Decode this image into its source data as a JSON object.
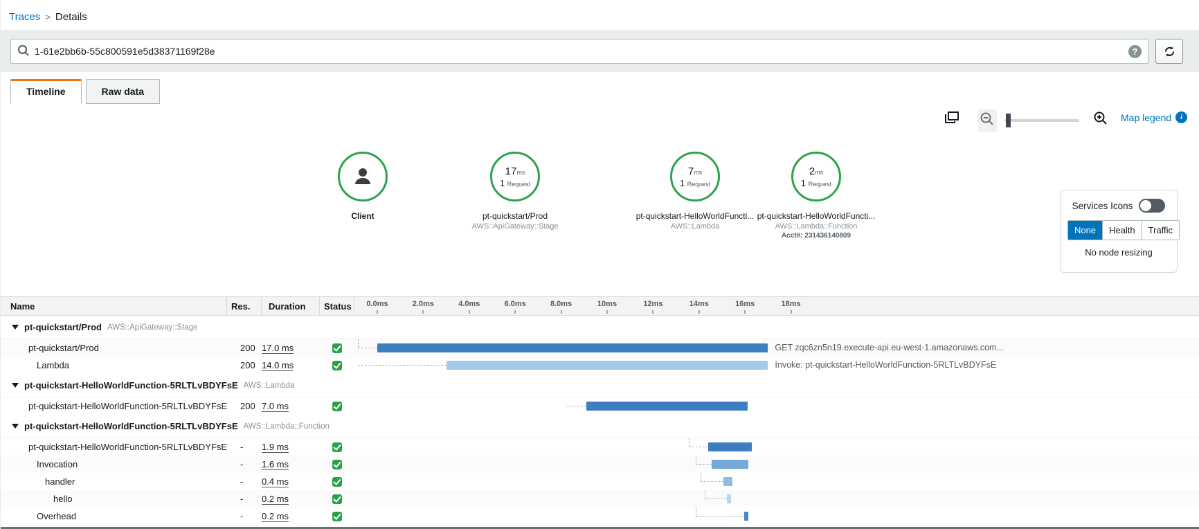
{
  "breadcrumb": {
    "link": "Traces",
    "separator": ">",
    "current": "Details"
  },
  "search": {
    "value": "1-61e2bb6b-55c800591e5d38371169f28e"
  },
  "tabs": {
    "timeline": "Timeline",
    "raw": "Raw data"
  },
  "toolbar": {
    "map_legend": "Map legend"
  },
  "service_map": {
    "nodes": [
      {
        "kind": "client",
        "label": "Client"
      },
      {
        "kind": "service",
        "duration": "17",
        "duration_unit": "ms",
        "count": "1",
        "count_unit": "Request",
        "name": "pt-quickstart/Prod",
        "service_type": "AWS::ApiGateway::Stage"
      },
      {
        "kind": "service",
        "duration": "7",
        "duration_unit": "ms",
        "count": "1",
        "count_unit": "Request",
        "name": "pt-quickstart-HelloWorldFuncti...",
        "service_type": "AWS::Lambda"
      },
      {
        "kind": "service",
        "duration": "2",
        "duration_unit": "ms",
        "count": "1",
        "count_unit": "Request",
        "name": "pt-quickstart-HelloWorldFuncti...",
        "service_type": "AWS::Lambda::Function",
        "account": "Acct#: 231436140809"
      }
    ]
  },
  "options_panel": {
    "services_icons": "Services Icons",
    "modes": [
      "None",
      "Health",
      "Traffic"
    ],
    "selected_mode": "None",
    "note": "No node resizing"
  },
  "table": {
    "columns": {
      "name": "Name",
      "res": "Res.",
      "duration": "Duration",
      "status": "Status"
    },
    "ticks": [
      "0.0ms",
      "2.0ms",
      "4.0ms",
      "6.0ms",
      "8.0ms",
      "10ms",
      "12ms",
      "14ms",
      "16ms",
      "18ms"
    ],
    "rows": [
      {
        "kind": "group",
        "name": "pt-quickstart/Prod",
        "type": "AWS::ApiGateway::Stage"
      },
      {
        "kind": "row",
        "indent": 1,
        "name": "pt-quickstart/Prod",
        "res": "200",
        "duration": "17.0 ms",
        "status": "ok",
        "start_ms": 0,
        "dur_ms": 17.0,
        "color": "#3d7ec0",
        "annotation": "GET zqc6zn5n19.execute-api.eu-west-1.amazonaws.com...",
        "connector_from_ms": -0.84,
        "connector_vert": true
      },
      {
        "kind": "row",
        "indent": 2,
        "name": "Lambda",
        "res": "200",
        "duration": "14.0 ms",
        "status": "ok",
        "start_ms": 3.0,
        "dur_ms": 14.0,
        "color": "#a5c9e7",
        "annotation": "Invoke: pt-quickstart-HelloWorldFunction-5RLTLvBDYFsE",
        "connector_from_ms": -0.84,
        "connector_vert": false
      },
      {
        "kind": "group",
        "name": "pt-quickstart-HelloWorldFunction-5RLTLvBDYFsE",
        "type": "AWS::Lambda"
      },
      {
        "kind": "row",
        "indent": 1,
        "name": "pt-quickstart-HelloWorldFunction-5RLTLvBDYFsE",
        "res": "200",
        "duration": "7.0 ms",
        "status": "ok",
        "start_ms": 9.1,
        "dur_ms": 7.0,
        "color": "#3d7ec0",
        "annotation": "",
        "connector_from_ms": 8.25,
        "connector_vert": false
      },
      {
        "kind": "group",
        "name": "pt-quickstart-HelloWorldFunction-5RLTLvBDYFsE",
        "type": "AWS::Lambda::Function"
      },
      {
        "kind": "row",
        "indent": 1,
        "name": "pt-quickstart-HelloWorldFunction-5RLTLvBDYFsE",
        "res": "-",
        "duration": "1.9 ms",
        "status": "ok",
        "start_ms": 14.4,
        "dur_ms": 1.9,
        "color": "#3d7ec0",
        "annotation": "",
        "connector_from_ms": 13.55,
        "connector_vert": true
      },
      {
        "kind": "row",
        "indent": 2,
        "name": "Invocation",
        "res": "-",
        "duration": "1.6 ms",
        "status": "ok",
        "start_ms": 14.55,
        "dur_ms": 1.6,
        "color": "#74a9d8",
        "annotation": "",
        "connector_from_ms": 13.85,
        "connector_vert": true
      },
      {
        "kind": "row",
        "indent": 3,
        "name": "handler",
        "res": "-",
        "duration": "0.4 ms",
        "status": "ok",
        "start_ms": 15.06,
        "dur_ms": 0.4,
        "color": "#8fbbe0",
        "annotation": "",
        "connector_from_ms": 14.07,
        "connector_vert": true
      },
      {
        "kind": "row",
        "indent": 4,
        "name": "hello",
        "res": "-",
        "duration": "0.2 ms",
        "status": "ok",
        "start_ms": 15.2,
        "dur_ms": 0.2,
        "color": "#b9d5ec",
        "annotation": "",
        "connector_from_ms": 14.25,
        "connector_vert": true
      },
      {
        "kind": "row",
        "indent": 2,
        "name": "Overhead",
        "res": "-",
        "duration": "0.2 ms",
        "status": "ok",
        "start_ms": 15.96,
        "dur_ms": 0.2,
        "color": "#4a87c7",
        "annotation": "",
        "connector_from_ms": 13.85,
        "connector_vert": true
      }
    ]
  },
  "colors": {
    "link_blue": "#0073bb",
    "tab_orange": "#ec7211",
    "node_green": "#2ca34c",
    "success_green": "#2ba24a",
    "bar_dark": "#3d7ec0",
    "bar_light": "#a5c9e7"
  }
}
